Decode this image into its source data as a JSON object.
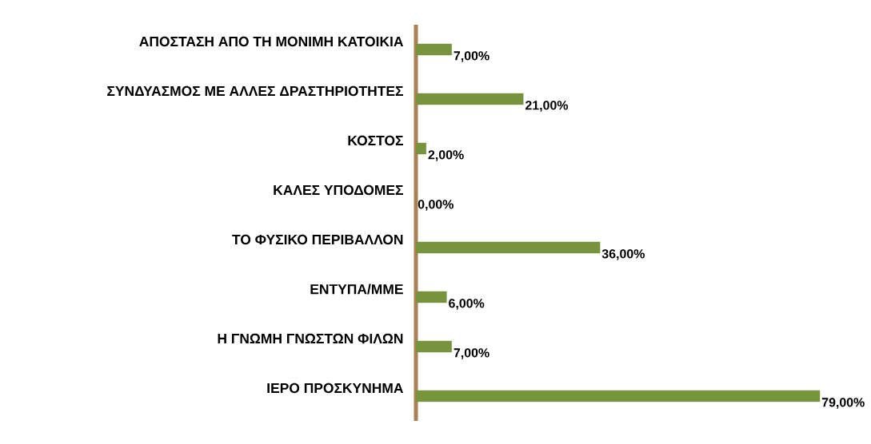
{
  "chart_data": {
    "type": "bar",
    "orientation": "horizontal",
    "categories": [
      "ΑΠΟΣΤΑΣΗ ΑΠΟ ΤΗ ΜΟΝΙΜΗ ΚΑΤΟΙΚΙΑ",
      "ΣΥΝΔΥΑΣΜΟΣ ΜΕ ΑΛΛΕΣ ΔΡΑΣΤΗΡΙΟΤΗΤΕΣ",
      "ΚΟΣΤΟΣ",
      "ΚΑΛΕΣ ΥΠΟΔΟΜΕΣ",
      "ΤΟ ΦΥΣΙΚΟ ΠΕΡΙΒΑΛΛΟΝ",
      "ΕΝΤΥΠΑ/ΜΜΕ",
      "Η ΓΝΩΜΗ ΓΝΩΣΤΩΝ ΦΙΛΩΝ",
      "ΙΕΡΟ ΠΡΟΣΚΥΝΗΜΑ"
    ],
    "values": [
      7,
      21,
      2,
      0,
      36,
      6,
      7,
      79
    ],
    "value_labels": [
      "7,00%",
      "21,00%",
      "2,00%",
      "0,00%",
      "36,00%",
      "6,00%",
      "7,00%",
      "79,00%"
    ],
    "color": "#77933c",
    "grid": false
  }
}
